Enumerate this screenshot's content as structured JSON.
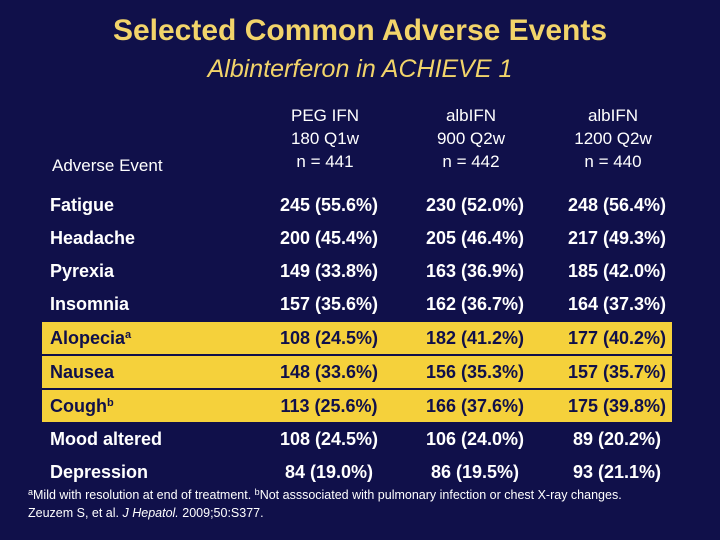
{
  "title": "Selected Common Adverse Events",
  "subtitle": "Albinterferon in ACHIEVE 1",
  "header": {
    "adverse_event": "Adverse Event",
    "columns": [
      {
        "line1": "PEG IFN",
        "line2": "180 Q1w",
        "line3": "n = 441"
      },
      {
        "line1": "albIFN",
        "line2": "900 Q2w",
        "line3": "n = 442"
      },
      {
        "line1": "albIFN",
        "line2": "1200 Q2w",
        "line3": "n = 440"
      }
    ]
  },
  "rows": [
    {
      "event": "Fatigue",
      "sup": "",
      "v1": "245 (55.6%)",
      "v2": "230 (52.0%)",
      "v3": "248 (56.4%)"
    },
    {
      "event": "Headache",
      "sup": "",
      "v1": "200 (45.4%)",
      "v2": "205 (46.4%)",
      "v3": "217 (49.3%)"
    },
    {
      "event": "Pyrexia",
      "sup": "",
      "v1": "149 (33.8%)",
      "v2": "163 (36.9%)",
      "v3": "185 (42.0%)"
    },
    {
      "event": "Insomnia",
      "sup": "",
      "v1": "157 (35.6%)",
      "v2": "162 (36.7%)",
      "v3": "164 (37.3%)"
    },
    {
      "event": "Alopecia",
      "sup": "a",
      "v1": "108 (24.5%)",
      "v2": "182 (41.2%)",
      "v3": "177 (40.2%)"
    },
    {
      "event": "Nausea",
      "sup": "",
      "v1": "148 (33.6%)",
      "v2": "156 (35.3%)",
      "v3": "157 (35.7%)"
    },
    {
      "event": "Cough",
      "sup": "b",
      "v1": "113 (25.6%)",
      "v2": "166 (37.6%)",
      "v3": "175 (39.8%)"
    },
    {
      "event": "Mood altered",
      "sup": "",
      "v1": "108 (24.5%)",
      "v2": "106 (24.0%)",
      "v3": "89 (20.2%)"
    },
    {
      "event": "Depression",
      "sup": "",
      "v1": "84 (19.0%)",
      "v2": "86 (19.5%)",
      "v3": "93 (21.1%)"
    }
  ],
  "highlight_color": "#f5d13b",
  "footnote": {
    "a_marker": "a",
    "a_text": "Mild with resolution at end of treatment.",
    "b_marker": "b",
    "b_text": "Not asssociated with pulmonary infection or chest X-ray changes.",
    "citation_authors": "Zeuzem S, et al.",
    "citation_journal": "J Hepatol.",
    "citation_details": "2009;50:S377."
  }
}
